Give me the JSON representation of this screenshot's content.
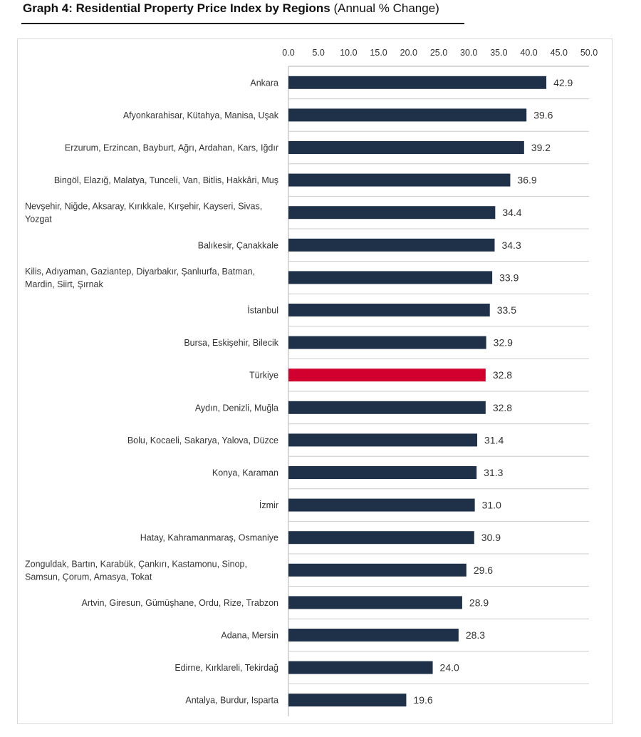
{
  "header": {
    "title_bold": "Graph 4: Residential Property Price Index by Regions",
    "title_rest": "(Annual % Change)"
  },
  "chart_data": {
    "type": "bar",
    "orientation": "horizontal",
    "xlim": [
      0,
      50
    ],
    "x_ticks": [
      "0.0",
      "5.0",
      "10.0",
      "15.0",
      "20.0",
      "25.0",
      "30.0",
      "35.0",
      "40.0",
      "45.0",
      "50.0"
    ],
    "x_axis_position": "top",
    "grid": false,
    "categories": [
      [
        "Ankara"
      ],
      [
        "Afyonkarahisar, Kütahya, Manisa, Uşak"
      ],
      [
        "Erzurum, Erzincan, Bayburt, Ağrı, Ardahan, Kars, Iğdır"
      ],
      [
        "Bingöl, Elazığ, Malatya, Tunceli, Van, Bitlis, Hakkâri, Muş"
      ],
      [
        "Nevşehir, Niğde, Aksaray, Kırıkkale, Kırşehir, Kayseri, Sivas,",
        "Yozgat"
      ],
      [
        "Balıkesir, Çanakkale"
      ],
      [
        "Kilis, Adıyaman, Gaziantep, Diyarbakır, Şanlıurfa, Batman,",
        "Mardin, Siirt, Şırnak"
      ],
      [
        "İstanbul"
      ],
      [
        "Bursa, Eskişehir, Bilecik"
      ],
      [
        "Türkiye"
      ],
      [
        "Aydın, Denizli, Muğla"
      ],
      [
        "Bolu, Kocaeli, Sakarya, Yalova, Düzce"
      ],
      [
        "Konya, Karaman"
      ],
      [
        "İzmir"
      ],
      [
        "Hatay, Kahramanmaraş, Osmaniye"
      ],
      [
        "Zonguldak, Bartın, Karabük, Çankırı, Kastamonu, Sinop,",
        "Samsun, Çorum, Amasya, Tokat"
      ],
      [
        "Artvin, Giresun, Gümüşhane, Ordu, Rize, Trabzon"
      ],
      [
        "Adana, Mersin"
      ],
      [
        "Edirne, Kırklareli, Tekirdağ"
      ],
      [
        "Antalya, Burdur, Isparta"
      ]
    ],
    "values": [
      42.9,
      39.6,
      39.2,
      36.9,
      34.4,
      34.3,
      33.9,
      33.5,
      32.9,
      32.8,
      32.8,
      31.4,
      31.3,
      31.0,
      30.9,
      29.6,
      28.9,
      28.3,
      24.0,
      19.6
    ],
    "value_labels": [
      "42.9",
      "39.6",
      "39.2",
      "36.9",
      "34.4",
      "34.3",
      "33.9",
      "33.5",
      "32.9",
      "32.8",
      "32.8",
      "31.4",
      "31.3",
      "31.0",
      "30.9",
      "29.6",
      "28.9",
      "28.3",
      "24.0",
      "19.6"
    ],
    "colors": {
      "bar": "#1f3049",
      "highlight": "#d2002e",
      "highlight_category": "Türkiye",
      "axis": "#b0b0b0",
      "separator": "#cccccc"
    }
  }
}
